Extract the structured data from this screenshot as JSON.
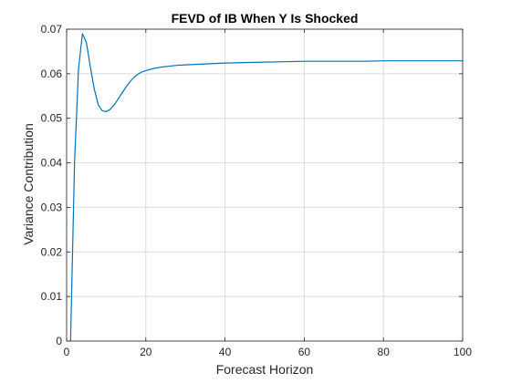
{
  "chart_data": {
    "type": "line",
    "title": "FEVD of IB When Y Is Shocked",
    "xlabel": "Forecast Horizon",
    "ylabel": "Variance Contribution",
    "xlim": [
      0,
      100
    ],
    "ylim": [
      0,
      0.07
    ],
    "x_ticks": [
      0,
      20,
      40,
      60,
      80,
      100
    ],
    "y_ticks": [
      0,
      0.01,
      0.02,
      0.03,
      0.04,
      0.05,
      0.06,
      0.07
    ],
    "x_tick_labels": [
      "0",
      "20",
      "40",
      "60",
      "80",
      "100"
    ],
    "y_tick_labels": [
      "0",
      "0.01",
      "0.02",
      "0.03",
      "0.04",
      "0.05",
      "0.06",
      "0.07"
    ],
    "grid": true,
    "legend": "none",
    "series": [
      {
        "color": "#0072bd",
        "x": [
          1,
          2,
          3,
          4,
          5,
          6,
          7,
          8,
          9,
          10,
          11,
          12,
          13,
          14,
          15,
          16,
          17,
          18,
          19,
          20,
          22,
          24,
          26,
          28,
          30,
          35,
          40,
          45,
          50,
          55,
          60,
          65,
          70,
          75,
          80,
          85,
          90,
          95,
          100
        ],
        "values": [
          0.0001,
          0.04,
          0.061,
          0.069,
          0.067,
          0.0615,
          0.0565,
          0.053,
          0.0517,
          0.0515,
          0.052,
          0.053,
          0.0543,
          0.0557,
          0.057,
          0.0582,
          0.0592,
          0.0599,
          0.0604,
          0.0607,
          0.0612,
          0.0615,
          0.0617,
          0.0619,
          0.062,
          0.0622,
          0.0624,
          0.0625,
          0.0626,
          0.0627,
          0.0628,
          0.0628,
          0.0628,
          0.0628,
          0.0629,
          0.0629,
          0.0629,
          0.0629,
          0.0629
        ]
      }
    ]
  }
}
